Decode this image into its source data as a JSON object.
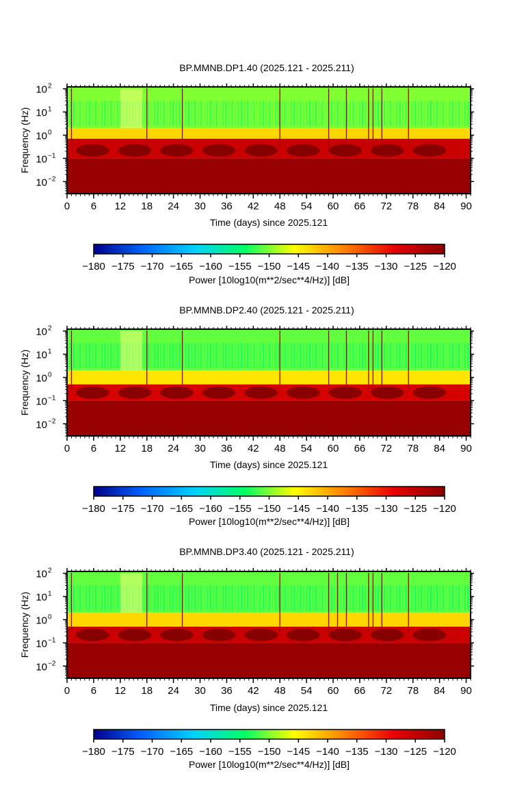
{
  "chart_data": [
    {
      "type": "heatmap",
      "title": "BP.MMNB.DP1.40 (2025.121 - 2025.211)",
      "xlabel": "Time (days) since 2025.121",
      "ylabel": "Frequency (Hz)",
      "xlim": [
        0,
        91
      ],
      "x_ticks": [
        "0",
        "6",
        "12",
        "18",
        "24",
        "30",
        "36",
        "42",
        "48",
        "54",
        "60",
        "66",
        "72",
        "78",
        "84",
        "90"
      ],
      "ylim": [
        0.003,
        120
      ],
      "y_scale": "log",
      "y_ticks": [
        {
          "base": "10",
          "exp": "2"
        },
        {
          "base": "10",
          "exp": "1"
        },
        {
          "base": "10",
          "exp": "0"
        },
        {
          "base": "10",
          "exp": "−1"
        },
        {
          "base": "10",
          "exp": "−2"
        }
      ],
      "colorbar": {
        "label": "Power [10log10(m**2/sec**4/Hz)] [dB]",
        "min": -180,
        "max": -120,
        "ticks": [
          "−180",
          "−175",
          "−170",
          "−165",
          "−160",
          "−155",
          "−150",
          "−145",
          "−140",
          "−135",
          "−130",
          "−125",
          "−120"
        ],
        "colors": [
          "#00008b",
          "#0066ff",
          "#00d0ff",
          "#00ff66",
          "#ffff00",
          "#ff8000",
          "#e60000",
          "#8b0000"
        ]
      },
      "bands_db": [
        {
          "fmin": 2,
          "fmax": 120,
          "db": -150
        },
        {
          "fmin": 0.7,
          "fmax": 2,
          "db": -143
        },
        {
          "fmin": 0.1,
          "fmax": 0.7,
          "db": -126
        },
        {
          "fmin": 0.003,
          "fmax": 0.1,
          "db": -121
        }
      ],
      "data_gap_days": [
        12,
        17
      ],
      "spike_days": [
        1,
        18,
        26,
        48,
        59,
        63,
        68,
        69,
        71,
        77
      ]
    },
    {
      "type": "heatmap",
      "title": "BP.MMNB.DP2.40 (2025.121 - 2025.211)",
      "xlabel": "Time (days) since 2025.121",
      "ylabel": "Frequency (Hz)",
      "xlim": [
        0,
        91
      ],
      "x_ticks": [
        "0",
        "6",
        "12",
        "18",
        "24",
        "30",
        "36",
        "42",
        "48",
        "54",
        "60",
        "66",
        "72",
        "78",
        "84",
        "90"
      ],
      "ylim": [
        0.003,
        120
      ],
      "y_scale": "log",
      "y_ticks": [
        {
          "base": "10",
          "exp": "2"
        },
        {
          "base": "10",
          "exp": "1"
        },
        {
          "base": "10",
          "exp": "0"
        },
        {
          "base": "10",
          "exp": "−1"
        },
        {
          "base": "10",
          "exp": "−2"
        }
      ],
      "colorbar": {
        "label": "Power [10log10(m**2/sec**4/Hz)] [dB]",
        "min": -180,
        "max": -120,
        "ticks": [
          "−180",
          "−175",
          "−170",
          "−165",
          "−160",
          "−155",
          "−150",
          "−145",
          "−140",
          "−135",
          "−130",
          "−125",
          "−120"
        ],
        "colors": [
          "#00008b",
          "#0066ff",
          "#00d0ff",
          "#00ff66",
          "#ffff00",
          "#ff8000",
          "#e60000",
          "#8b0000"
        ]
      },
      "bands_db": [
        {
          "fmin": 2,
          "fmax": 120,
          "db": -151
        },
        {
          "fmin": 0.5,
          "fmax": 2,
          "db": -144
        },
        {
          "fmin": 0.1,
          "fmax": 0.5,
          "db": -127
        },
        {
          "fmin": 0.003,
          "fmax": 0.1,
          "db": -121
        }
      ],
      "data_gap_days": [
        12,
        17
      ],
      "spike_days": [
        1,
        18,
        26,
        48,
        59,
        63,
        68,
        69,
        71,
        77
      ]
    },
    {
      "type": "heatmap",
      "title": "BP.MMNB.DP3.40 (2025.121 - 2025.211)",
      "xlabel": "Time (days) since 2025.121",
      "ylabel": "Frequency (Hz)",
      "xlim": [
        0,
        91
      ],
      "x_ticks": [
        "0",
        "6",
        "12",
        "18",
        "24",
        "30",
        "36",
        "42",
        "48",
        "54",
        "60",
        "66",
        "72",
        "78",
        "84",
        "90"
      ],
      "ylim": [
        0.003,
        120
      ],
      "y_scale": "log",
      "y_ticks": [
        {
          "base": "10",
          "exp": "2"
        },
        {
          "base": "10",
          "exp": "1"
        },
        {
          "base": "10",
          "exp": "0"
        },
        {
          "base": "10",
          "exp": "−1"
        },
        {
          "base": "10",
          "exp": "−2"
        }
      ],
      "colorbar": {
        "label": "Power [10log10(m**2/sec**4/Hz)] [dB]",
        "min": -180,
        "max": -120,
        "ticks": [
          "−180",
          "−175",
          "−170",
          "−165",
          "−160",
          "−155",
          "−150",
          "−145",
          "−140",
          "−135",
          "−130",
          "−125",
          "−120"
        ],
        "colors": [
          "#00008b",
          "#0066ff",
          "#00d0ff",
          "#00ff66",
          "#ffff00",
          "#ff8000",
          "#e60000",
          "#8b0000"
        ]
      },
      "bands_db": [
        {
          "fmin": 2,
          "fmax": 120,
          "db": -151
        },
        {
          "fmin": 0.5,
          "fmax": 2,
          "db": -143
        },
        {
          "fmin": 0.1,
          "fmax": 0.5,
          "db": -126
        },
        {
          "fmin": 0.003,
          "fmax": 0.1,
          "db": -121
        }
      ],
      "data_gap_days": [
        12,
        17
      ],
      "spike_days": [
        1,
        18,
        26,
        48,
        59,
        61,
        63,
        68,
        69,
        71,
        77
      ]
    }
  ]
}
